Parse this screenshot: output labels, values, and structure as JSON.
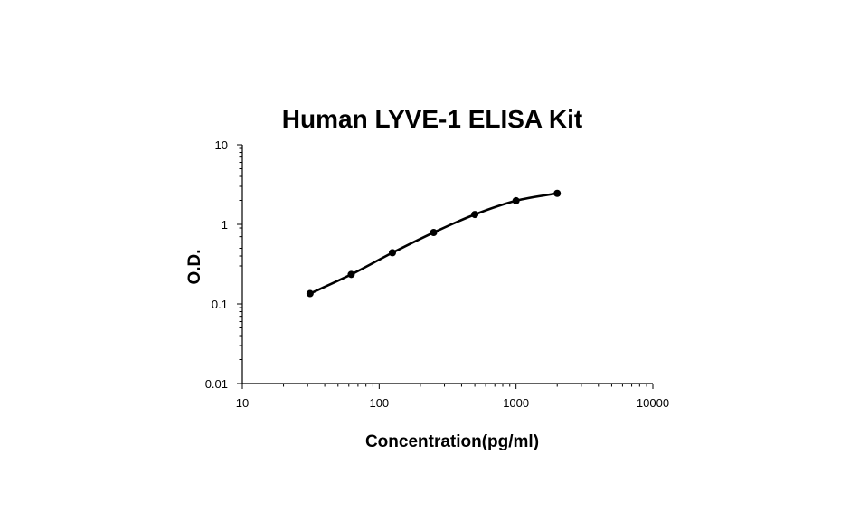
{
  "chart_data": {
    "type": "line",
    "title": "Human LYVE-1 ELISA Kit",
    "xlabel": "Concentration(pg/ml)",
    "ylabel": "O.D.",
    "x_scale": "log",
    "y_scale": "log",
    "xlim": [
      10,
      10000
    ],
    "ylim": [
      0.01,
      10
    ],
    "x_ticks": [
      "10",
      "100",
      "1000",
      "10000"
    ],
    "y_ticks": [
      "0.01",
      "0.1",
      "1",
      "10"
    ],
    "grid": false,
    "legend": "none",
    "series": [
      {
        "x": [
          31.25,
          62.5,
          125,
          250,
          500,
          1000,
          2000
        ],
        "y": [
          0.135,
          0.235,
          0.44,
          0.79,
          1.33,
          1.98,
          2.45
        ]
      }
    ],
    "colors": {
      "line": "#000000",
      "axis": "#000000"
    }
  }
}
